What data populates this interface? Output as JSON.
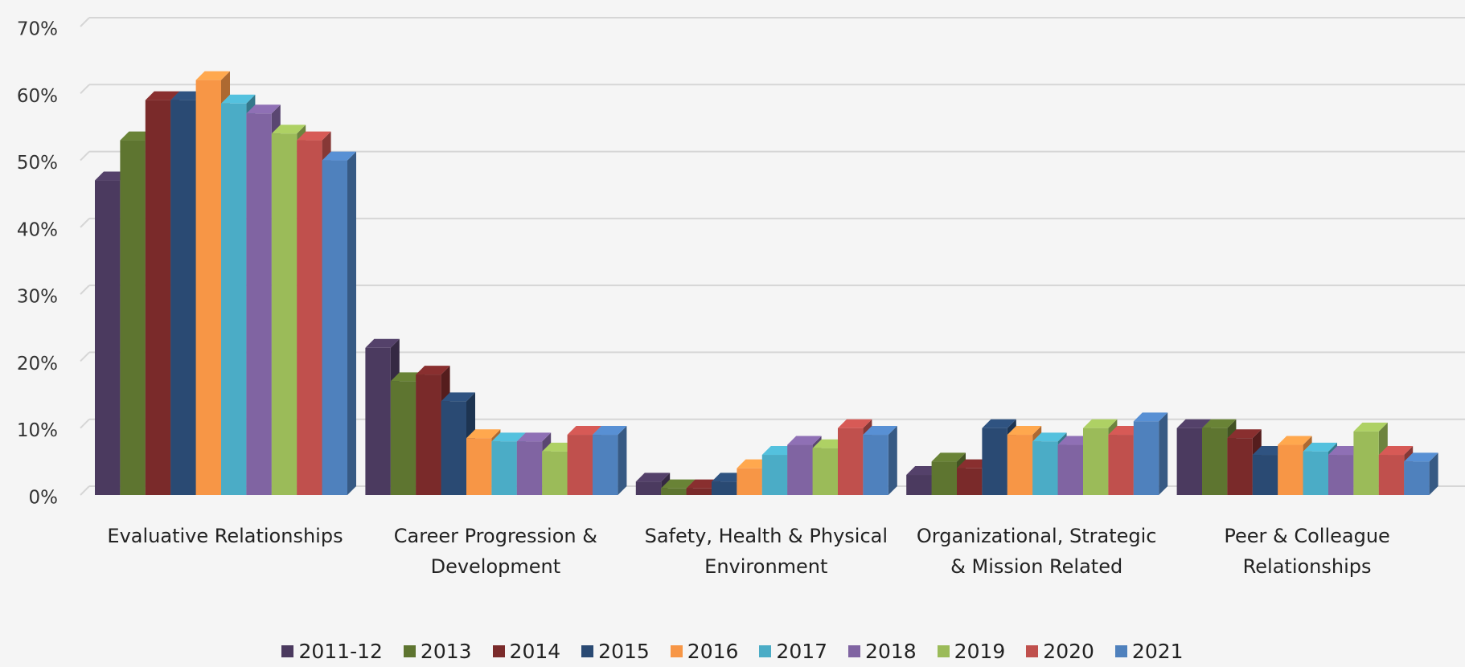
{
  "chart_data": {
    "type": "bar3d",
    "categories": [
      "Evaluative Relationships",
      "Career Progression & Development",
      "Safety, Health & Physical Environment",
      "Organizational, Strategic & Mission Related",
      "Peer & Colleague Relationships"
    ],
    "series": [
      {
        "name": "2011-12",
        "color": "#4b3a5f",
        "values": [
          47,
          22,
          2,
          3,
          10
        ]
      },
      {
        "name": "2013",
        "color": "#5e7530",
        "values": [
          53,
          17,
          1,
          5,
          10
        ]
      },
      {
        "name": "2014",
        "color": "#7a2a2a",
        "values": [
          59,
          18,
          1,
          4,
          8.5
        ]
      },
      {
        "name": "2015",
        "color": "#2a4a73",
        "values": [
          59,
          14,
          2,
          10,
          6
        ]
      },
      {
        "name": "2016",
        "color": "#f79646",
        "values": [
          62,
          8.5,
          4,
          9,
          7.5
        ]
      },
      {
        "name": "2017",
        "color": "#4bacc6",
        "values": [
          58.5,
          8,
          6,
          8,
          6.5
        ]
      },
      {
        "name": "2018",
        "color": "#8064a2",
        "values": [
          57,
          8,
          7.5,
          7.5,
          6
        ]
      },
      {
        "name": "2019",
        "color": "#9bbb59",
        "values": [
          54,
          6.5,
          7,
          10,
          9.5
        ]
      },
      {
        "name": "2020",
        "color": "#c0504d",
        "values": [
          53,
          9,
          10,
          9,
          6
        ]
      },
      {
        "name": "2021",
        "color": "#4f81bd",
        "values": [
          50,
          9,
          9,
          11,
          5
        ]
      }
    ],
    "ylim": [
      0,
      70
    ],
    "yticks": [
      {
        "value": 0,
        "label": "0%"
      },
      {
        "value": 10,
        "label": "10%"
      },
      {
        "value": 20,
        "label": "20%"
      },
      {
        "value": 30,
        "label": "30%"
      },
      {
        "value": 40,
        "label": "40%"
      },
      {
        "value": 50,
        "label": "50%"
      },
      {
        "value": 60,
        "label": "60%"
      },
      {
        "value": 70,
        "label": "70%"
      }
    ],
    "grid": true,
    "legend": "bottom"
  }
}
